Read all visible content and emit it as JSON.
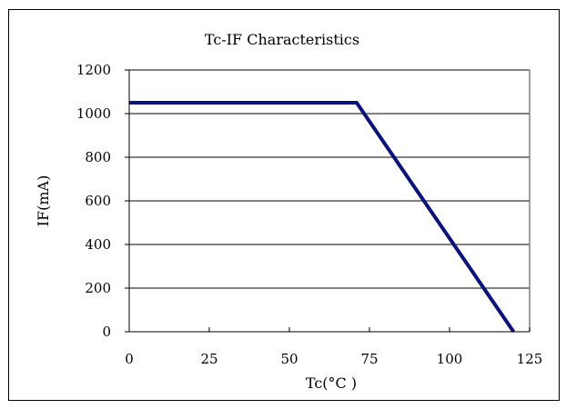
{
  "chart_data": {
    "type": "line",
    "title": "Tc-IF Characteristics",
    "xlabel": "Tc(°C )",
    "ylabel": "IF(mA)",
    "xlim": [
      0,
      125
    ],
    "ylim": [
      0,
      1200
    ],
    "x_ticks": [
      "0",
      "25",
      "50",
      "75",
      "100",
      "125"
    ],
    "y_ticks": [
      "0",
      "200",
      "400",
      "600",
      "800",
      "1000",
      "1200"
    ],
    "grid": "horizontal",
    "series": [
      {
        "color": "#0a1280",
        "x": [
          0,
          71,
          120
        ],
        "y": [
          1050,
          1050,
          0
        ]
      }
    ]
  }
}
